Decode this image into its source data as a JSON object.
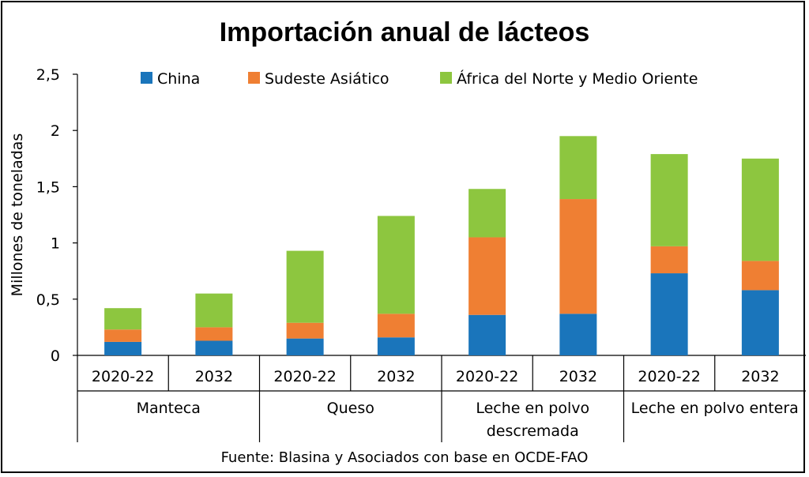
{
  "chart_data": {
    "type": "bar",
    "stacked": true,
    "title": "Importación anual de lácteos",
    "source": "Fuente: Blasina y Asociados con base en OCDE-FAO",
    "ylabel": "Millones de toneladas",
    "xlabel": "",
    "ylim": [
      0,
      2.5
    ],
    "yticks": [
      "0",
      "0,5",
      "1",
      "1,5",
      "2",
      "2,5"
    ],
    "grid": false,
    "legend_position": "top",
    "categories": [
      "2020-22",
      "2032",
      "2020-22",
      "2032",
      "2020-22",
      "2032",
      "2020-22",
      "2032"
    ],
    "groups": [
      {
        "label": [
          "Manteca"
        ],
        "span": 2
      },
      {
        "label": [
          "Queso"
        ],
        "span": 2
      },
      {
        "label": [
          "Leche en polvo",
          "descremada"
        ],
        "span": 2
      },
      {
        "label": [
          "Leche en polvo entera"
        ],
        "span": 2
      }
    ],
    "series": [
      {
        "name": "China",
        "color": "#1a75bb",
        "values": [
          0.12,
          0.13,
          0.15,
          0.16,
          0.36,
          0.37,
          0.73,
          0.58
        ]
      },
      {
        "name": "Sudeste Asiático",
        "color": "#ef7f33",
        "values": [
          0.11,
          0.12,
          0.14,
          0.21,
          0.69,
          1.02,
          0.24,
          0.26
        ]
      },
      {
        "name": "África del Norte y Medio Oriente",
        "color": "#8dc63f",
        "values": [
          0.19,
          0.3,
          0.64,
          0.87,
          0.43,
          0.56,
          0.82,
          0.91
        ]
      }
    ]
  }
}
